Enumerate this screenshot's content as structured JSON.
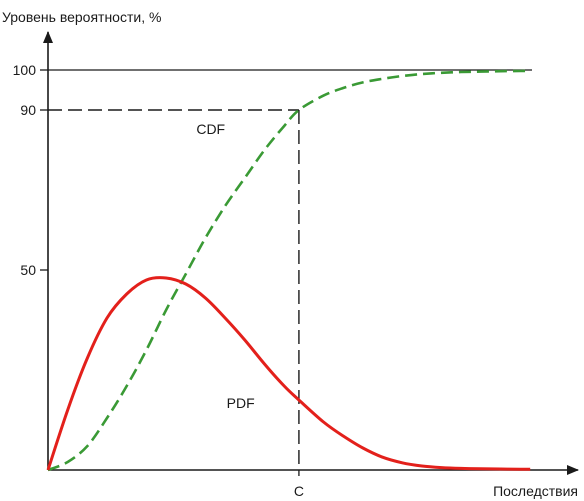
{
  "chart_data": {
    "type": "line",
    "title": "",
    "ylabel": "Уровень вероятности, %",
    "xlabel": "Последствия",
    "ylim": [
      0,
      108
    ],
    "xlim": [
      0,
      10
    ],
    "y_ticks": [
      {
        "value": 50,
        "label": "50"
      },
      {
        "value": 90,
        "label": "90"
      },
      {
        "value": 100,
        "label": "100"
      }
    ],
    "x_ticks": [
      {
        "value": 5.1,
        "label": "C"
      }
    ],
    "grid": false,
    "reference_lines": {
      "horizontal_at": 100,
      "dashed_horizontal_at": 90,
      "dashed_vertical_at": 5.1
    },
    "series": [
      {
        "name": "CDF",
        "style": "dashed",
        "color": "#3a9a35",
        "x": [
          0,
          0.4,
          0.8,
          1.2,
          1.6,
          2.0,
          2.4,
          2.8,
          3.2,
          3.6,
          4.0,
          4.4,
          4.8,
          5.1,
          5.6,
          6.0,
          6.4,
          6.8,
          7.2,
          7.6,
          8.0,
          8.4,
          8.8,
          9.2,
          9.6,
          9.8
        ],
        "values": [
          0,
          2,
          6,
          13,
          21,
          30,
          40,
          49,
          58,
          66,
          73,
          80,
          86,
          90,
          93.6,
          95.5,
          96.9,
          97.8,
          98.5,
          99.0,
          99.3,
          99.5,
          99.6,
          99.7,
          99.75,
          99.8
        ]
      },
      {
        "name": "PDF",
        "style": "solid",
        "color": "#e3201b",
        "x": [
          0,
          0.4,
          0.8,
          1.2,
          1.6,
          2.0,
          2.4,
          2.8,
          3.2,
          3.6,
          4.0,
          4.4,
          4.8,
          5.1,
          5.6,
          6.0,
          6.4,
          6.8,
          7.2,
          7.6,
          8.0,
          8.4,
          8.8,
          9.2,
          9.6,
          9.8
        ],
        "values": [
          0,
          15,
          28,
          38,
          44,
          47.5,
          48,
          46.5,
          43,
          38,
          32.5,
          26.5,
          21,
          17.5,
          12,
          8.5,
          5.5,
          3.2,
          1.8,
          1.0,
          0.6,
          0.4,
          0.3,
          0.25,
          0.2,
          0.2
        ]
      }
    ],
    "annotations": [
      {
        "text": "CDF",
        "x": 3.6,
        "y": 84
      },
      {
        "text": "PDF",
        "x": 4.2,
        "y": 15.5
      }
    ]
  }
}
